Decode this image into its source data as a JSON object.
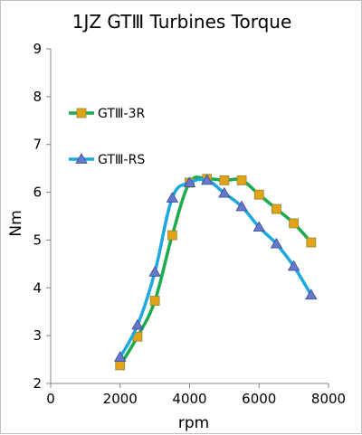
{
  "chart_data": {
    "type": "line",
    "title": "1JZ GTⅢ Turbines Torque",
    "xlabel": "rpm",
    "ylabel": "Nm",
    "xlim": [
      0,
      8000
    ],
    "ylim": [
      2,
      9
    ],
    "xticks": [
      0,
      2000,
      4000,
      6000,
      8000
    ],
    "yticks": [
      2,
      3,
      4,
      5,
      6,
      7,
      8,
      9
    ],
    "grid": false,
    "legend_position": "left",
    "series": [
      {
        "name": "GTⅢ-3R",
        "color": "#1aab4c",
        "marker": "square",
        "marker_color": "#e3a218",
        "x": [
          2000,
          2500,
          3000,
          3500,
          4000,
          4500,
          5000,
          5500,
          6000,
          6500,
          7000,
          7500
        ],
        "y": [
          2.38,
          2.98,
          3.73,
          5.1,
          6.2,
          6.28,
          6.25,
          6.25,
          5.95,
          5.65,
          5.35,
          4.95
        ]
      },
      {
        "name": "GTⅢ-RS",
        "color": "#1fa8e0",
        "marker": "triangle",
        "marker_color": "#6878c8",
        "x": [
          2000,
          2500,
          3000,
          3500,
          4000,
          4500,
          5000,
          5500,
          6000,
          6500,
          7000,
          7500
        ],
        "y": [
          2.55,
          3.22,
          4.33,
          5.88,
          6.2,
          6.25,
          5.98,
          5.7,
          5.27,
          4.92,
          4.45,
          3.85
        ]
      }
    ]
  }
}
